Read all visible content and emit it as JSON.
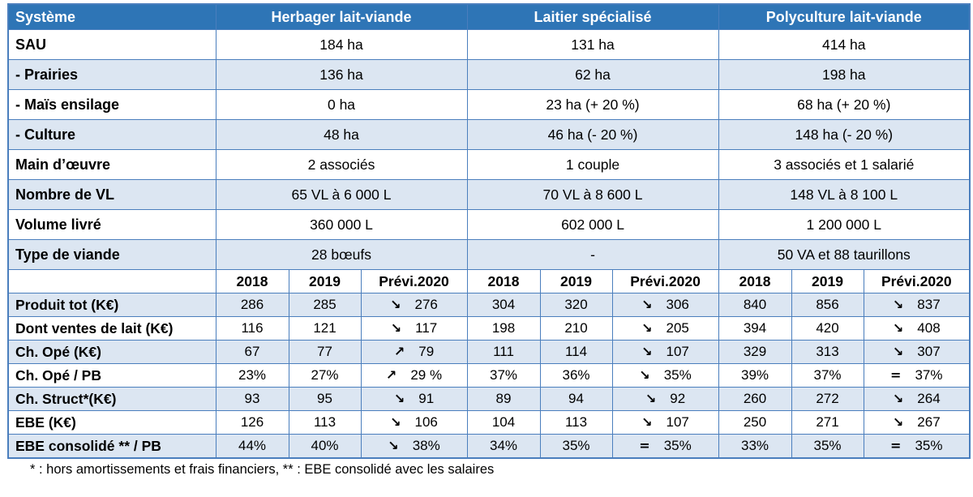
{
  "table": {
    "header": {
      "label": "Système",
      "groups": [
        "Herbager lait-viande",
        "Laitier spécialisé",
        "Polyculture lait-viande"
      ]
    },
    "info_rows": [
      {
        "label": "SAU",
        "values": [
          "184 ha",
          "131 ha",
          "414 ha"
        ]
      },
      {
        "label": "- Prairies",
        "values": [
          "136 ha",
          "62 ha",
          "198 ha"
        ]
      },
      {
        "label": "- Maïs ensilage",
        "values": [
          "0 ha",
          "23 ha (+ 20 %)",
          "68 ha (+ 20 %)"
        ]
      },
      {
        "label": "- Culture",
        "values": [
          "48 ha",
          "46 ha (- 20 %)",
          "148 ha (- 20 %)"
        ]
      },
      {
        "label": "Main d’œuvre",
        "values": [
          "2 associés",
          "1 couple",
          "3 associés et 1 salarié"
        ]
      },
      {
        "label": "Nombre de VL",
        "values": [
          "65 VL à 6 000 L",
          "70 VL à 8 600 L",
          "148 VL à 8 100 L"
        ]
      },
      {
        "label": "Volume livré",
        "values": [
          "360 000 L",
          "602 000 L",
          "1 200 000 L"
        ]
      },
      {
        "label": "Type de viande",
        "values": [
          "28 bœufs",
          "-",
          "50 VA et 88 taurillons"
        ]
      }
    ],
    "years": [
      "2018",
      "2019",
      "Prévi.2020"
    ],
    "fin_rows": [
      {
        "label": "Produit tot (K€)",
        "values": [
          "286",
          "285",
          "276",
          "304",
          "320",
          "306",
          "840",
          "856",
          "837"
        ],
        "trends": [
          null,
          null,
          "↘",
          null,
          null,
          "↘",
          null,
          null,
          "↘"
        ]
      },
      {
        "label": "Dont ventes de lait (K€)",
        "values": [
          "116",
          "121",
          "117",
          "198",
          "210",
          "205",
          "394",
          "420",
          "408"
        ],
        "trends": [
          null,
          null,
          "↘",
          null,
          null,
          "↘",
          null,
          null,
          "↘"
        ]
      },
      {
        "label": "Ch. Opé (K€)",
        "values": [
          "67",
          "77",
          "79",
          "111",
          "114",
          "107",
          "329",
          "313",
          "307"
        ],
        "trends": [
          null,
          null,
          "↗",
          null,
          null,
          "↘",
          null,
          null,
          "↘"
        ]
      },
      {
        "label": "Ch. Opé / PB",
        "values": [
          "23%",
          "27%",
          "29 %",
          "37%",
          "36%",
          "35%",
          "39%",
          "37%",
          "37%"
        ],
        "trends": [
          null,
          null,
          "↗",
          null,
          null,
          "↘",
          null,
          null,
          "="
        ]
      },
      {
        "label": "Ch. Struct*(K€)",
        "values": [
          "93",
          "95",
          "91",
          "89",
          "94",
          "92",
          "260",
          "272",
          "264"
        ],
        "trends": [
          null,
          null,
          "↘",
          null,
          null,
          "↘",
          null,
          null,
          "↘"
        ]
      },
      {
        "label": "EBE (K€)",
        "values": [
          "126",
          "113",
          "106",
          "104",
          "113",
          "107",
          "250",
          "271",
          "267"
        ],
        "trends": [
          null,
          null,
          "↘",
          null,
          null,
          "↘",
          null,
          null,
          "↘"
        ]
      },
      {
        "label": "EBE consolidé ** / PB",
        "values": [
          "44%",
          "40%",
          "38%",
          "34%",
          "35%",
          "35%",
          "33%",
          "35%",
          "35%"
        ],
        "trends": [
          null,
          null,
          "↘",
          null,
          null,
          "=",
          null,
          null,
          "="
        ]
      }
    ],
    "footnote": "* : hors amortissements et frais financiers, ** : EBE consolidé avec les salaires"
  },
  "icons": {
    "trend_down": "↘",
    "trend_up": "↗",
    "trend_equal": "="
  },
  "colors": {
    "header_bg": "#2E75B6",
    "header_text": "#FFFFFF",
    "row_alt_bg": "#DCE6F2",
    "border": "#4A7EBD",
    "text": "#000000"
  }
}
